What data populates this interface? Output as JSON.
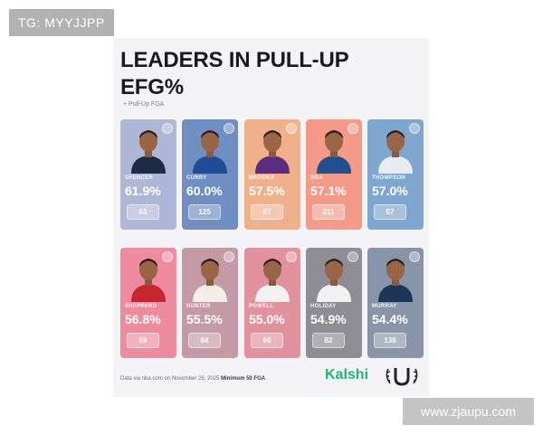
{
  "watermarks": {
    "top": "TG: MYYJJPP",
    "bottom": "www.zjaupu.com"
  },
  "graphic": {
    "title_line1": "LEADERS IN PULL-UP",
    "title_line2": "EFG%",
    "subtitle": "+ Pull-Up FGA",
    "players": [
      {
        "name": "SPENCER",
        "efg": "61.9%",
        "fga": "63",
        "color": "#aeb7d6",
        "jersey": "#1d2b46"
      },
      {
        "name": "CURRY",
        "efg": "60.0%",
        "fga": "125",
        "color": "#6f8fc2",
        "jersey": "#1f4b99"
      },
      {
        "name": "BROOKS",
        "efg": "57.5%",
        "fga": "87",
        "color": "#f0b08a",
        "jersey": "#5a2d82"
      },
      {
        "name": "SGA",
        "efg": "57.1%",
        "fga": "211",
        "color": "#f49a89",
        "jersey": "#1f4f8f"
      },
      {
        "name": "THOMPSON",
        "efg": "57.0%",
        "fga": "57",
        "color": "#7fa6cf",
        "jersey": "#e8ecf2"
      },
      {
        "name": "SHEPPARD",
        "efg": "56.8%",
        "fga": "59",
        "color": "#ef8b9f",
        "jersey": "#c8262f"
      },
      {
        "name": "HUNTER",
        "efg": "55.5%",
        "fga": "64",
        "color": "#c59aa7",
        "jersey": "#f3efe8"
      },
      {
        "name": "POWELL",
        "efg": "55.0%",
        "fga": "60",
        "color": "#e1929e",
        "jersey": "#f3f1f1"
      },
      {
        "name": "HOLIDAY",
        "efg": "54.9%",
        "fga": "82",
        "color": "#8d8d93",
        "jersey": "#f1f1f1"
      },
      {
        "name": "MURRAY",
        "efg": "54.4%",
        "fga": "136",
        "color": "#8895a9",
        "jersey": "#1d3557"
      }
    ],
    "footer_note": "Data via nba.com on November 26, 2025",
    "footer_min": "Minimum 50 FGA",
    "brand": "Kalshi"
  }
}
